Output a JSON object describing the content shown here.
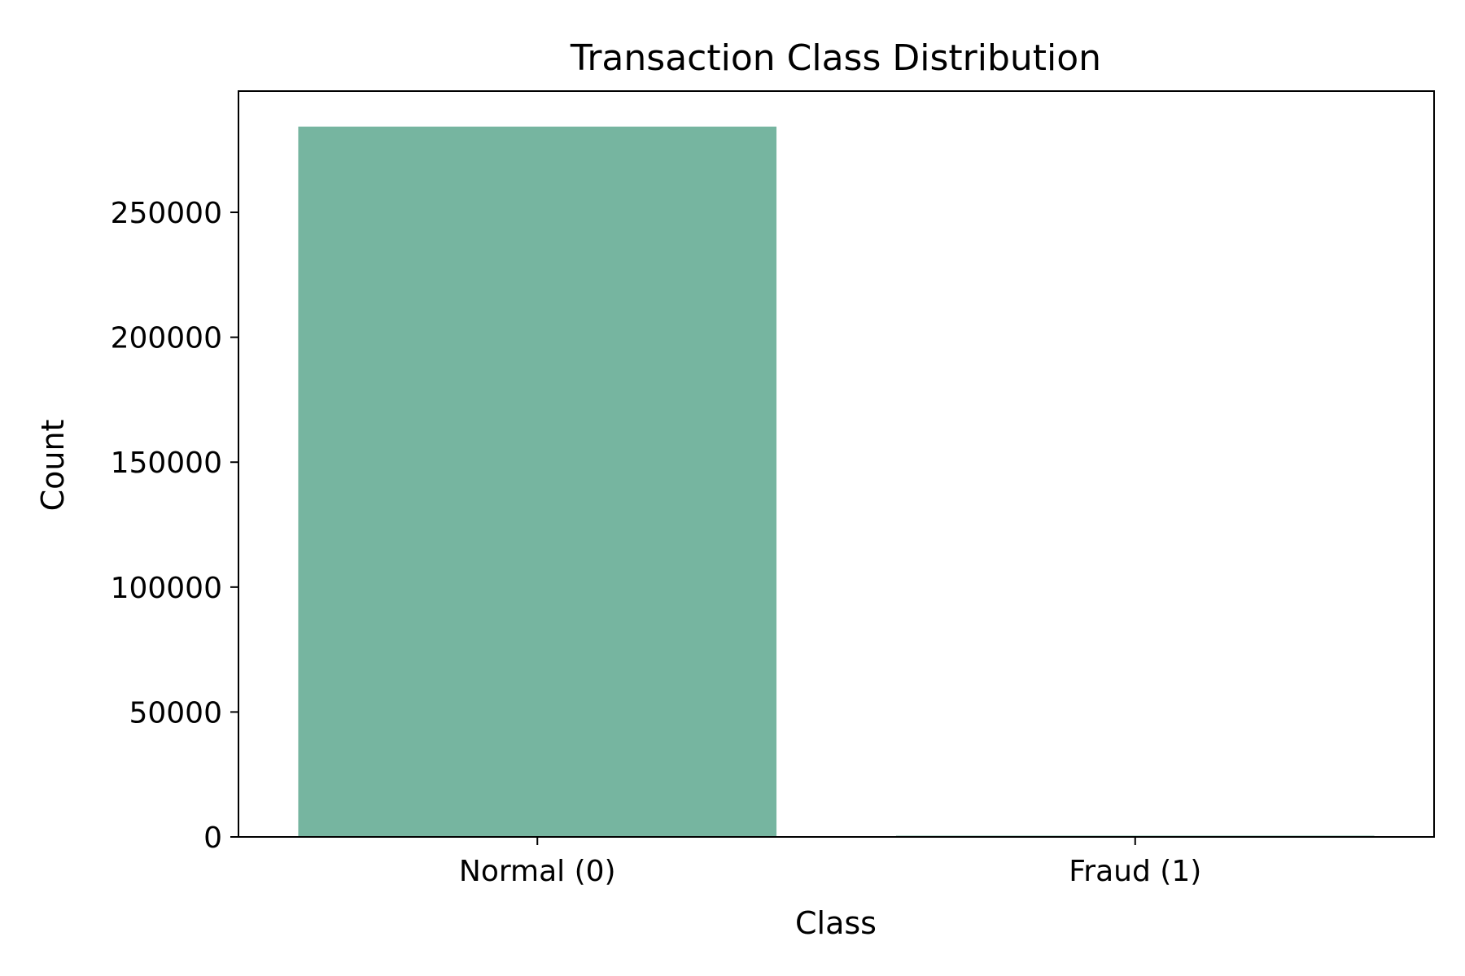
{
  "chart_data": {
    "type": "bar",
    "title": "Transaction Class Distribution",
    "xlabel": "Class",
    "ylabel": "Count",
    "categories": [
      "Normal (0)",
      "Fraud (1)"
    ],
    "values": [
      284315,
      492
    ],
    "ylim": [
      0,
      298530
    ],
    "yticks": [
      0,
      50000,
      100000,
      150000,
      200000,
      250000
    ],
    "grid": false,
    "legend": "none",
    "bar_colors": [
      "#76b5a0",
      "#76b5a0"
    ]
  }
}
